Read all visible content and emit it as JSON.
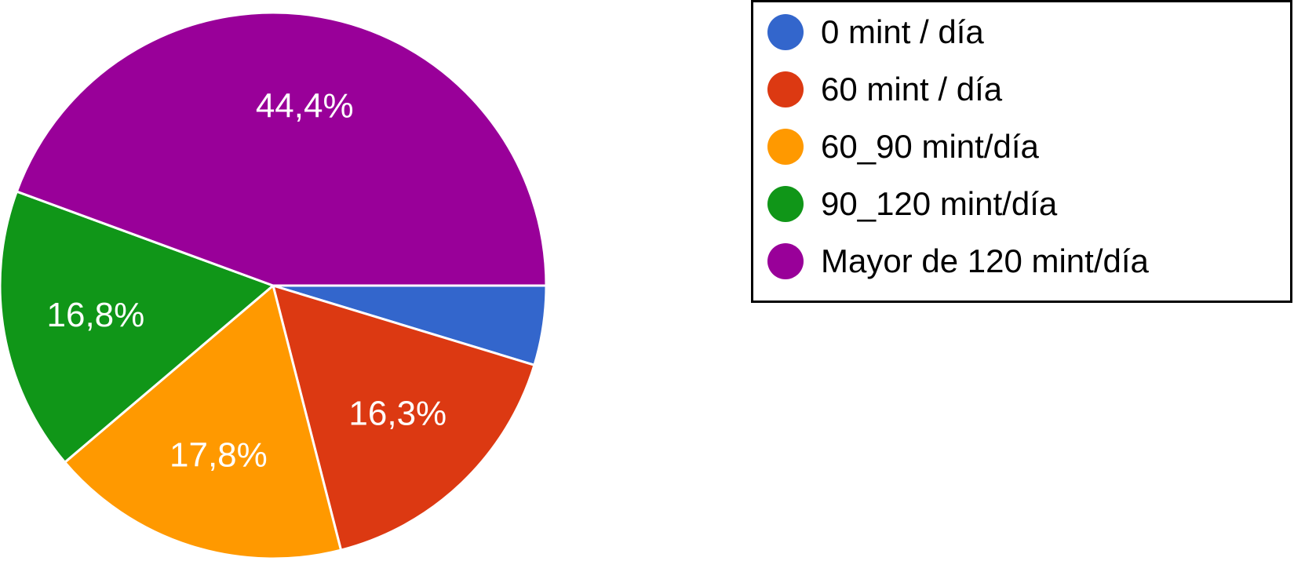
{
  "chart_data": {
    "type": "pie",
    "categories": [
      "0 mint / día",
      "60 mint / día",
      "60_90 mint/día",
      "90_120 mint/día",
      "Mayor de 120 mint/día"
    ],
    "values": [
      4.7,
      16.3,
      17.8,
      16.8,
      44.4
    ],
    "data_labels": [
      "",
      "16,3%",
      "17,8%",
      "16,8%",
      "44,4%"
    ],
    "colors": [
      "#3366cc",
      "#dc3912",
      "#ff9900",
      "#109618",
      "#990099"
    ],
    "start_angle_deg": 0,
    "direction": "clockwise",
    "legend_placement": "right",
    "title": ""
  }
}
